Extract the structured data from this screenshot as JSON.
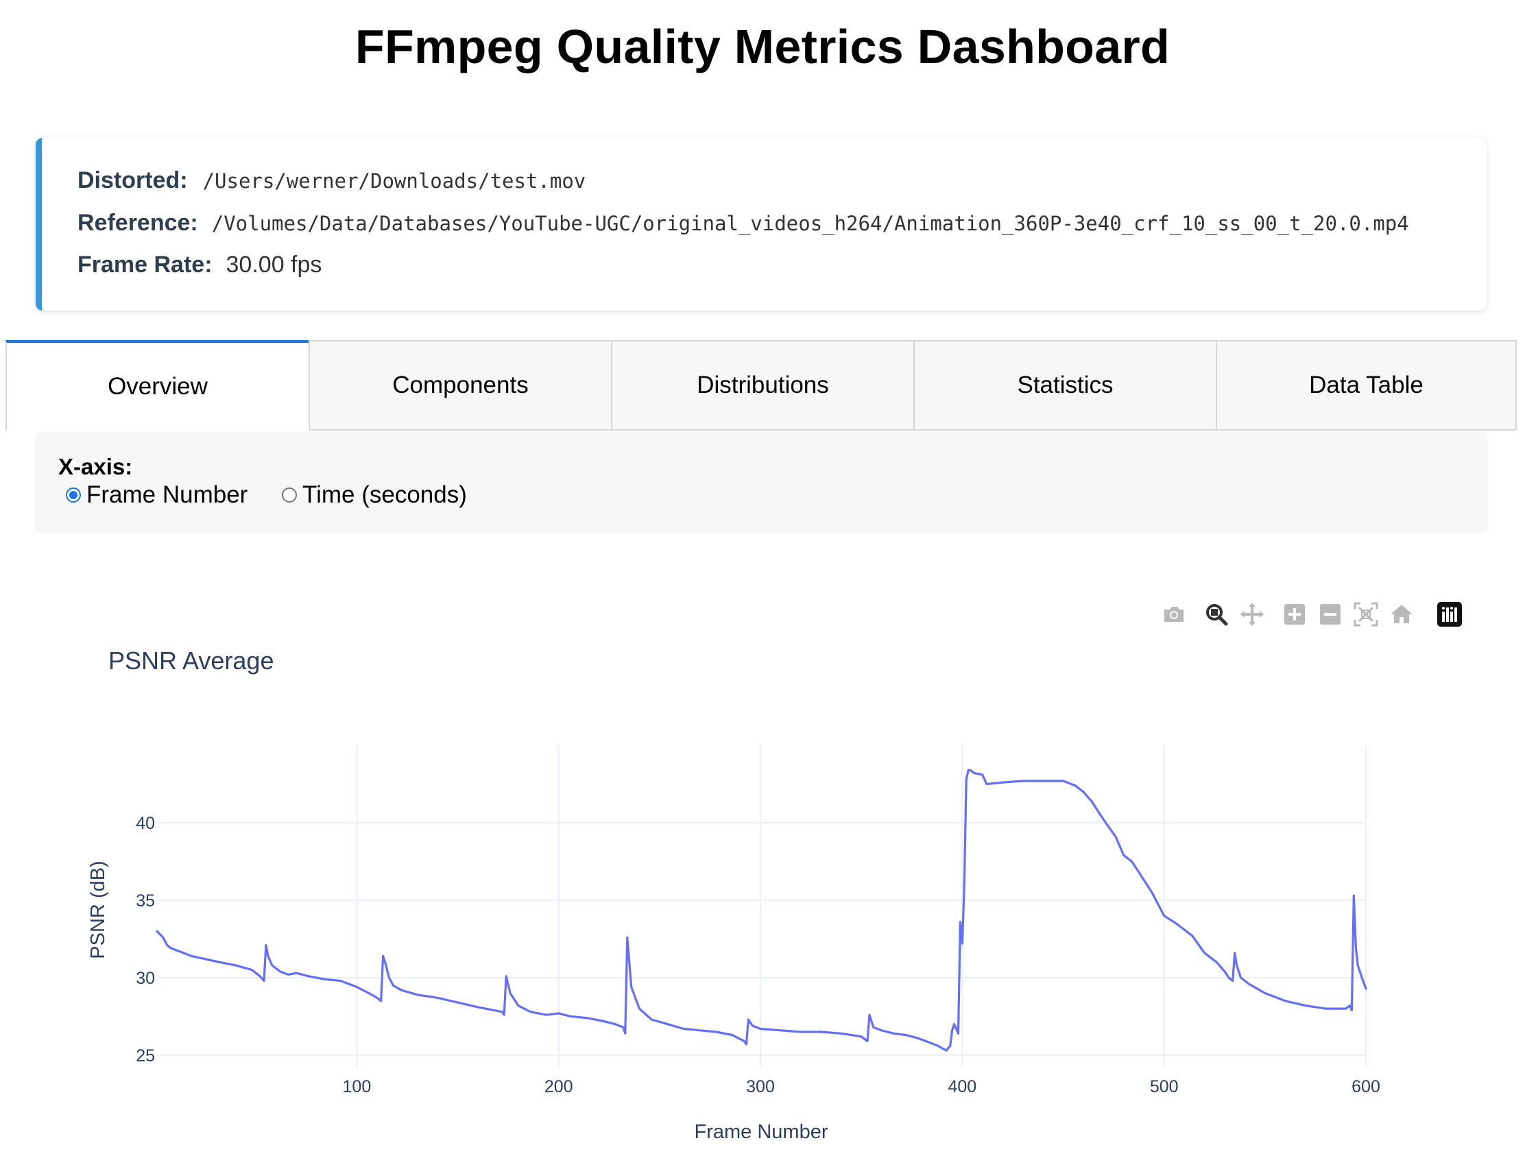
{
  "header": {
    "title": "FFmpeg Quality Metrics Dashboard"
  },
  "info": {
    "distorted_label": "Distorted:",
    "distorted_value": "/Users/werner/Downloads/test.mov",
    "reference_label": "Reference:",
    "reference_value": "/Volumes/Data/Databases/YouTube-UGC/original_videos_h264/Animation_360P-3e40_crf_10_ss_00_t_20.0.mp4",
    "framerate_label": "Frame Rate:",
    "framerate_value": "30.00 fps",
    "accent_color": "#3498db"
  },
  "tabs": [
    {
      "label": "Overview",
      "active": true
    },
    {
      "label": "Components",
      "active": false
    },
    {
      "label": "Distributions",
      "active": false
    },
    {
      "label": "Statistics",
      "active": false
    },
    {
      "label": "Data Table",
      "active": false
    }
  ],
  "controls": {
    "xaxis_label": "X-axis:",
    "options": [
      {
        "label": "Frame Number",
        "checked": true
      },
      {
        "label": "Time (seconds)",
        "checked": false
      }
    ]
  },
  "modebar": {
    "icons": [
      "camera-icon",
      "zoom-icon",
      "pan-icon",
      "zoom-in-icon",
      "zoom-out-icon",
      "autoscale-icon",
      "reset-axes-icon",
      "plotly-logo-icon"
    ]
  },
  "chart_data": {
    "type": "line",
    "title": "PSNR Average",
    "xlabel": "Frame Number",
    "ylabel": "PSNR (dB)",
    "xlim": [
      1,
      600
    ],
    "ylim": [
      24.2,
      45.0
    ],
    "xticks": [
      100,
      200,
      300,
      400,
      500,
      600
    ],
    "yticks": [
      25,
      30,
      35,
      40
    ],
    "grid": true,
    "line_color": "#636efa",
    "series": [
      {
        "x": [
          1,
          4,
          6,
          8,
          12,
          18,
          25,
          32,
          40,
          48,
          52,
          54,
          55,
          56,
          58,
          62,
          66,
          70,
          76,
          84,
          92,
          100,
          106,
          110,
          112,
          113,
          114,
          116,
          118,
          122,
          130,
          140,
          150,
          160,
          168,
          172,
          173,
          174,
          176,
          180,
          186,
          194,
          200,
          206,
          214,
          222,
          228,
          232,
          233,
          234,
          236,
          240,
          246,
          254,
          262,
          270,
          278,
          286,
          292,
          293,
          294,
          296,
          300,
          310,
          320,
          330,
          340,
          350,
          352,
          353,
          354,
          356,
          360,
          366,
          372,
          378,
          384,
          388,
          392,
          394,
          395,
          396,
          398,
          399,
          400,
          401,
          402,
          403,
          404,
          406,
          410,
          412,
          420,
          430,
          440,
          450,
          456,
          460,
          464,
          470,
          476,
          480,
          484,
          488,
          494,
          500,
          506,
          514,
          520,
          526,
          530,
          532,
          534,
          535,
          536,
          538,
          542,
          550,
          560,
          570,
          580,
          586,
          590,
          592,
          593,
          594,
          595,
          596,
          598,
          600
        ],
        "y": [
          33.0,
          32.6,
          32.1,
          31.9,
          31.7,
          31.4,
          31.2,
          31.0,
          30.8,
          30.5,
          30.1,
          29.8,
          32.1,
          31.4,
          30.8,
          30.4,
          30.2,
          30.3,
          30.1,
          29.9,
          29.8,
          29.4,
          29.0,
          28.7,
          28.5,
          31.4,
          31.0,
          30.0,
          29.5,
          29.2,
          28.9,
          28.7,
          28.4,
          28.1,
          27.9,
          27.8,
          27.6,
          30.1,
          29.0,
          28.2,
          27.8,
          27.6,
          27.7,
          27.5,
          27.4,
          27.2,
          27.0,
          26.8,
          26.4,
          32.6,
          29.4,
          28.0,
          27.3,
          27.0,
          26.7,
          26.6,
          26.5,
          26.3,
          25.9,
          25.7,
          27.3,
          26.9,
          26.7,
          26.6,
          26.5,
          26.5,
          26.4,
          26.2,
          26.0,
          25.9,
          27.6,
          26.8,
          26.6,
          26.4,
          26.3,
          26.1,
          25.8,
          25.6,
          25.3,
          25.6,
          26.6,
          27.0,
          26.4,
          33.6,
          32.2,
          36.0,
          42.8,
          43.4,
          43.4,
          43.2,
          43.1,
          42.5,
          42.6,
          42.7,
          42.7,
          42.7,
          42.4,
          42.0,
          41.4,
          40.2,
          39.1,
          37.9,
          37.5,
          36.7,
          35.5,
          34.0,
          33.5,
          32.7,
          31.6,
          31.0,
          30.4,
          30.0,
          29.8,
          31.6,
          30.8,
          30.0,
          29.6,
          29.0,
          28.5,
          28.2,
          28.0,
          28.0,
          28.0,
          28.2,
          27.9,
          35.3,
          32.0,
          30.8,
          30.0,
          29.3
        ]
      }
    ]
  }
}
